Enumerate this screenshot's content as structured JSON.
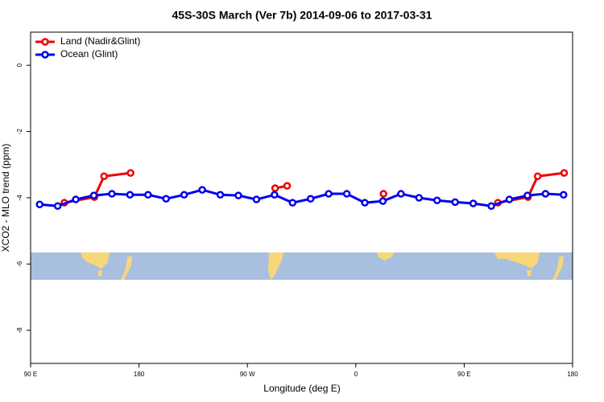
{
  "chart_data": {
    "type": "line",
    "title": "45S-30S March (Ver 7b)   2014-09-06 to 2017-03-31",
    "xlabel": "Longitude (deg E)",
    "ylabel": "XCO2 - MLO trend (ppm)",
    "xlim": [
      90,
      540
    ],
    "ylim": [
      -9,
      1
    ],
    "xticks": [
      {
        "value": 90,
        "label": "90 E"
      },
      180,
      {
        "value": 270,
        "label": "90 W"
      },
      {
        "value": 360,
        "label": "0"
      },
      {
        "value": 450,
        "label": "90 E"
      },
      {
        "value": 540,
        "label": "180"
      }
    ],
    "yticks": [
      0,
      -2,
      -4,
      -6,
      -8
    ],
    "legend": "top-left",
    "series": [
      {
        "name": "Land (Nadir&Glint)",
        "color": "#ee0000",
        "x": [
          118,
          143,
          151,
          173,
          null,
          293,
          303,
          null,
          383,
          null,
          478,
          503,
          511,
          533
        ],
        "values": [
          -4.15,
          -3.98,
          -3.35,
          -3.25,
          null,
          -3.71,
          -3.64,
          null,
          -3.88,
          null,
          -4.15,
          -3.98,
          -3.35,
          -3.25
        ]
      },
      {
        "name": "Ocean (Glint)",
        "color": "#0000ee",
        "x": [
          97.5,
          112.5,
          127.5,
          142.5,
          157.5,
          172.5,
          187.5,
          202.5,
          217.5,
          232.5,
          247.5,
          262.5,
          277.5,
          292.5,
          307.5,
          322.5,
          337.5,
          352.5,
          367.5,
          382.5,
          397.5,
          412.5,
          427.5,
          442.5,
          457.5,
          472.5,
          487.5,
          502.5,
          517.5,
          532.5
        ],
        "values": [
          -4.2,
          -4.25,
          -4.05,
          -3.93,
          -3.88,
          -3.91,
          -3.91,
          -4.03,
          -3.91,
          -3.76,
          -3.91,
          -3.93,
          -4.05,
          -3.91,
          -4.15,
          -4.03,
          -3.88,
          -3.88,
          -4.15,
          -4.1,
          -3.88,
          -4.0,
          -4.08,
          -4.13,
          -4.17,
          -4.25,
          -4.05,
          -3.93,
          -3.88,
          -3.91
        ]
      }
    ]
  }
}
